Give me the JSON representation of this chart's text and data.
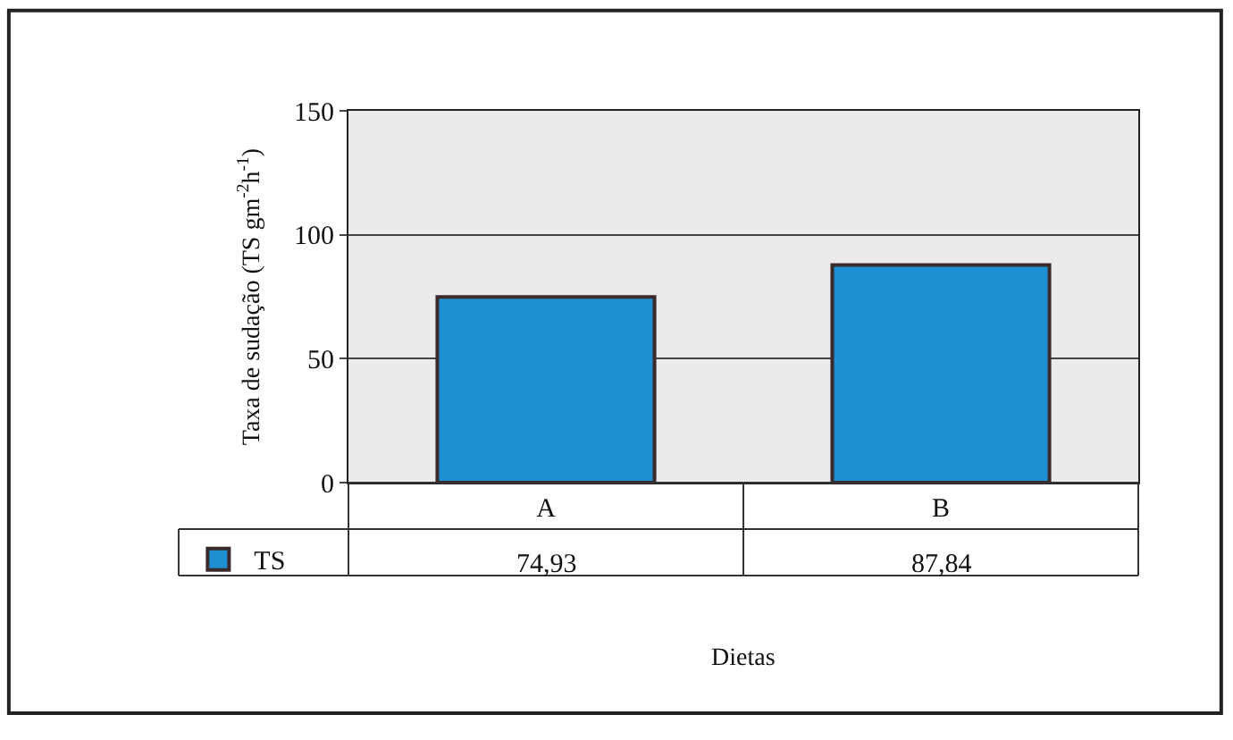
{
  "chart_data": {
    "type": "bar",
    "xlabel": "Dietas",
    "ylabel": "Taxa de sudação (TS gm$^{-2}$h$^{-1}$)",
    "categories": [
      "A",
      "B"
    ],
    "series": [
      {
        "name": "TS",
        "color": "#1e90d2",
        "values": [
          74.93,
          87.84
        ],
        "value_labels": [
          "74,93",
          "87,84"
        ]
      }
    ],
    "ylim": [
      0,
      150
    ],
    "yticks": [
      0,
      50,
      100,
      150
    ],
    "grid": "y",
    "legend": "bottom left"
  }
}
